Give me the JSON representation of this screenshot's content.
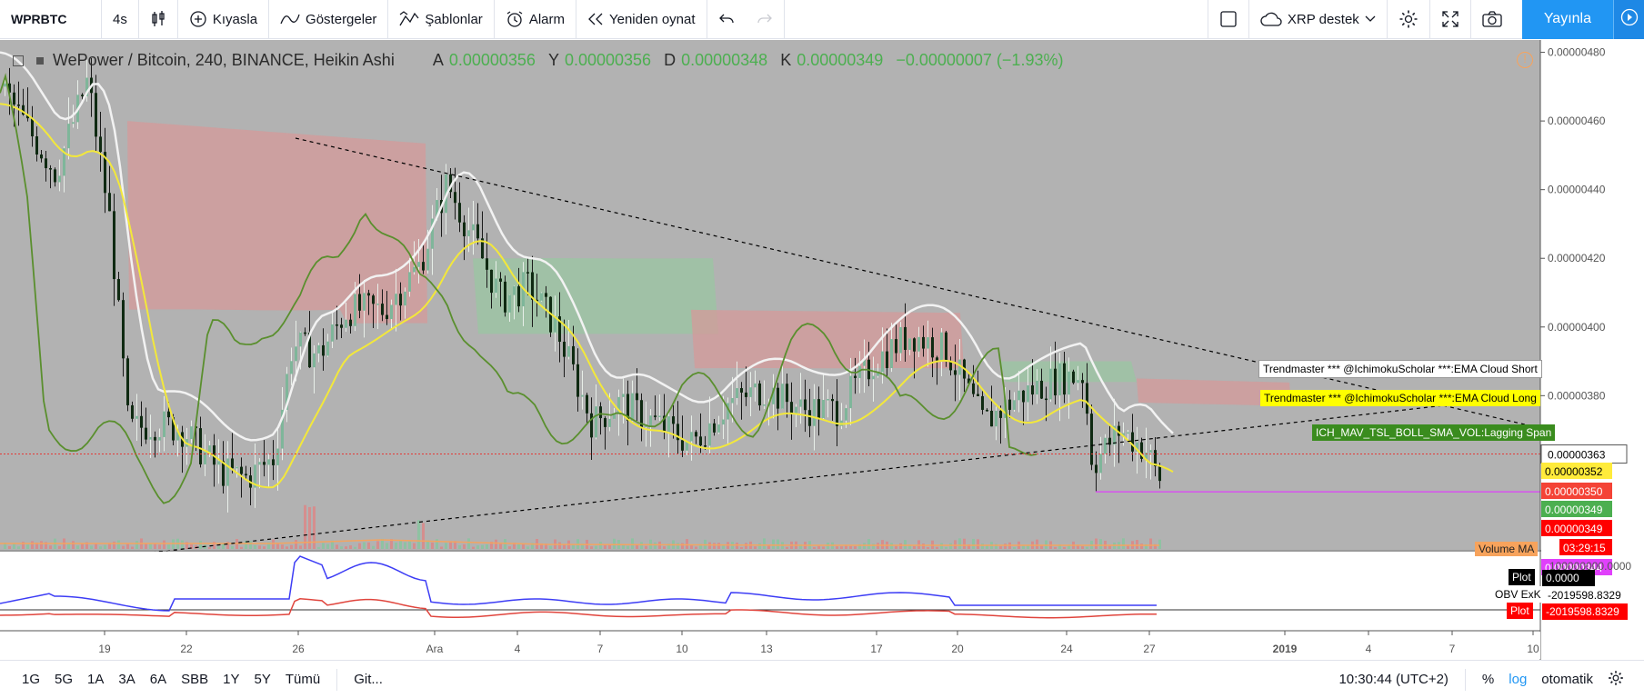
{
  "toolbar": {
    "symbol": "WPRBTC",
    "interval": "4s",
    "compare": "Kıyasla",
    "indicators": "Göstergeler",
    "templates": "Şablonlar",
    "alarm": "Alarm",
    "replay": "Yeniden oynat",
    "account": "XRP destek",
    "publish": "Yayınla"
  },
  "legend": {
    "title": "WePower / Bitcoin, 240, BINANCE, Heikin Ashi",
    "o_label": "A",
    "o_value": "0.00000356",
    "h_label": "Y",
    "h_value": "0.00000356",
    "l_label": "D",
    "l_value": "0.00000348",
    "c_label": "K",
    "c_value": "0.00000349",
    "change": "−0.00000007 (−1.93%)"
  },
  "price_axis": {
    "ticks": [
      "0.00000480",
      "0.00000460",
      "0.00000440",
      "0.00000420",
      "0.00000400",
      "0.00000380"
    ],
    "last_price": "0.00000363",
    "labels": [
      {
        "text": "0.00000352",
        "bg": "#ffeb3b",
        "fg": "#000"
      },
      {
        "text": "0.00000350",
        "bg": "#f44336",
        "fg": "#fff"
      },
      {
        "text": "0.00000349",
        "bg": "#4caf50",
        "fg": "#fff"
      },
      {
        "text": "0.00000349",
        "bg": "#ff0000",
        "fg": "#fff"
      },
      {
        "text": "03:29:15",
        "bg": "#ff0000",
        "fg": "#fff"
      },
      {
        "text": "0.00000344",
        "bg": "#e040fb",
        "fg": "#fff"
      }
    ]
  },
  "indicator_labels": {
    "ema_short": "Trendmaster *** @IchimokuScholar ***:EMA Cloud Short",
    "ema_long": "Trendmaster *** @IchimokuScholar ***:EMA Cloud Long",
    "lagging": "ICH_MAV_TSL_BOLL_SMA_VOL:Lagging Span",
    "volume_ma": "Volume MA"
  },
  "obv_pane": {
    "axis_top": "100000000.0000",
    "plot1_label": "Plot",
    "plot1_value": "0.0000",
    "obv_label": "OBV ExK",
    "obv_value": "-2019598.8329",
    "plot2_label": "Plot",
    "plot2_value": "-2019598.8329"
  },
  "time_axis": [
    "19",
    "22",
    "26",
    "Ara",
    "4",
    "7",
    "10",
    "13",
    "17",
    "20",
    "24",
    "27",
    "2019",
    "4",
    "7",
    "10"
  ],
  "bottombar": {
    "ranges": [
      "1G",
      "5G",
      "1A",
      "3A",
      "6A",
      "SBB",
      "1Y",
      "5Y",
      "Tümü"
    ],
    "goto": "Git...",
    "clock": "10:30:44 (UTC+2)",
    "percent": "%",
    "log": "log",
    "auto": "otomatik"
  },
  "colors": {
    "chart_bg": "#b2b2b2",
    "accent": "#2196f3",
    "up": "#7fb69a",
    "down": "#0f2a12",
    "ema_white": "#f2f2f2",
    "ema_yellow": "#f3e83a",
    "lagging_green": "#5a8f2e",
    "cloud_red": "#d49a9a",
    "cloud_green": "#99c6a2",
    "obv_blue": "#3d3df5",
    "obv_red": "#e0453d"
  }
}
